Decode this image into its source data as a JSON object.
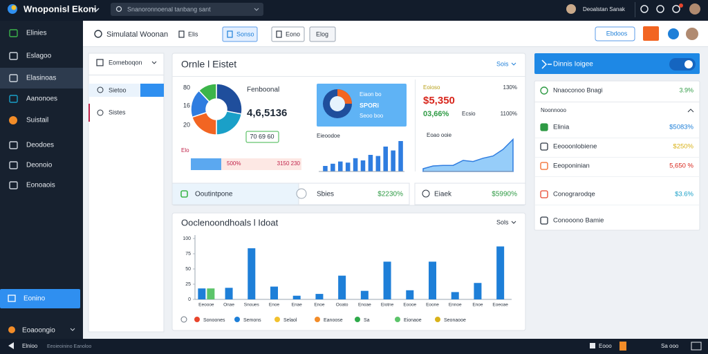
{
  "topbar": {
    "title": "Wnoponisl Ekoni",
    "search": "Snanoronnoenal tanbang sant",
    "user": "Deoalstan Sanak"
  },
  "sidebar": {
    "items": [
      "Elinies",
      "Eslagoo",
      "Elasinoas",
      "Aanonoes",
      "Suistail",
      "Deodoes",
      "Deonoio",
      "Eonoaois"
    ],
    "button": "Eonino",
    "footer": "Eoaoongio"
  },
  "toolbar": {
    "title": "Simulatal Woonan",
    "tabs": [
      "Elis",
      "Sonso",
      "Eono"
    ],
    "search_button": "Elog",
    "action": "Ebdoos"
  },
  "subnav": {
    "header": "Eomeboqon",
    "items": [
      "Sietoo",
      "Sistes"
    ]
  },
  "overview": {
    "title": "Ornle l Eistet",
    "menu": "Sois",
    "heading": "Fenboonal",
    "amount": "4,6,5136",
    "badge": "70 69 60",
    "axis": [
      "80",
      "16",
      "20"
    ],
    "progress_label": "Elo",
    "progress_a": "500%",
    "progress_b": "3150 230",
    "tile_title": "Eiaon bo",
    "tile_sub": "SPORi",
    "tile_note": "Seoo boo",
    "bars_title": "Eieoodoe",
    "stat_label": "Eoioso",
    "stat_pct": "130%",
    "stat_value": "$5,350",
    "stat_sub": "03,66%",
    "stat_sub_label": "Ecsio",
    "stat_pct2": "1100%",
    "line_title": "Eoao ooie"
  },
  "summary": [
    {
      "label": "Ooutintpone"
    },
    {
      "label": "Sbies",
      "value": "$2230%"
    },
    {
      "label": "Eiaek",
      "value": "$5990%"
    }
  ],
  "right_panel": {
    "header": "Dinnis Ioigee",
    "top": {
      "label": "Nnaoconoo Bnagi",
      "value": "3.9%"
    },
    "section": "Noonnooo",
    "items": [
      {
        "label": "Elinia",
        "value": "$5083%"
      },
      {
        "label": "Eeooonlobiene",
        "value": "$250%"
      },
      {
        "label": "Eeoponinian",
        "value": "5,650 %"
      },
      {
        "label": "Conograrodqe",
        "value": "$3.6%"
      },
      {
        "label": "Conooono Bamie"
      }
    ]
  },
  "statusbar": {
    "left": "Elnioo",
    "mid": "Eeoieoinino Eanoloo",
    "right": [
      "Eooo",
      "Sa ooo"
    ]
  },
  "chart_data": [
    {
      "type": "pie",
      "values": [
        28,
        22,
        20,
        18,
        12
      ],
      "colors": [
        "#1f4e9c",
        "#1aa0c8",
        "#f26522",
        "#2f7de0",
        "#3cb54a"
      ]
    },
    {
      "type": "bar",
      "values": [
        10,
        14,
        18,
        16,
        24,
        20,
        30,
        28,
        45,
        38,
        55
      ],
      "color": "#2f7de0",
      "ylim": [
        0,
        60
      ]
    },
    {
      "type": "area",
      "values": [
        5,
        10,
        11,
        11,
        20,
        18,
        24,
        28,
        40,
        58
      ],
      "color": "#2f7de0",
      "ylim": [
        0,
        70
      ]
    },
    {
      "type": "bar",
      "title": "Ooclenoondhoals l Idoat",
      "menu": "Sols",
      "categories": [
        "Eeoooe",
        "Onae",
        "Snoues",
        "Enoe",
        "Enae",
        "Enoe",
        "Ooato",
        "Enoae",
        "Eiotne",
        "Eoooe",
        "Eoone",
        "Ennoe",
        "Enoe",
        "Eoeoae"
      ],
      "series": [
        {
          "name": "Sonoones",
          "color": "#e8452c",
          "values": [
            null,
            null,
            null,
            null,
            null,
            null,
            null,
            null,
            null,
            null,
            null,
            null,
            null,
            null
          ]
        },
        {
          "name": "Semons",
          "color": "#1e7fd8",
          "values": [
            18,
            19,
            84,
            21,
            6,
            9,
            39,
            14,
            62,
            15,
            62,
            12,
            27,
            87
          ]
        },
        {
          "name": "Selaol",
          "color": "#f2c12e",
          "values": [
            null,
            null,
            null,
            null,
            null,
            null,
            null,
            null,
            null,
            null,
            null,
            null,
            null,
            null
          ]
        },
        {
          "name": "Eanoose",
          "color": "#f28c28",
          "values": [
            null,
            null,
            null,
            null,
            null,
            null,
            null,
            null,
            null,
            null,
            null,
            null,
            null,
            null
          ]
        },
        {
          "name": "Sa",
          "color": "#2eaa4a",
          "values": [
            null,
            null,
            null,
            null,
            null,
            null,
            null,
            null,
            null,
            null,
            null,
            null,
            null,
            null
          ]
        },
        {
          "name": "Eionaoe",
          "color": "#5cc46a",
          "values": [
            18,
            null,
            null,
            null,
            null,
            null,
            null,
            null,
            null,
            null,
            null,
            null,
            null,
            null
          ]
        },
        {
          "name": "Seonaooe",
          "color": "#d9b21a",
          "values": [
            null,
            null,
            null,
            null,
            null,
            null,
            null,
            null,
            null,
            null,
            null,
            null,
            null,
            null
          ]
        }
      ],
      "ylim": [
        0,
        100
      ],
      "yticks": [
        0,
        25,
        50,
        75,
        100
      ],
      "grid": false
    }
  ]
}
